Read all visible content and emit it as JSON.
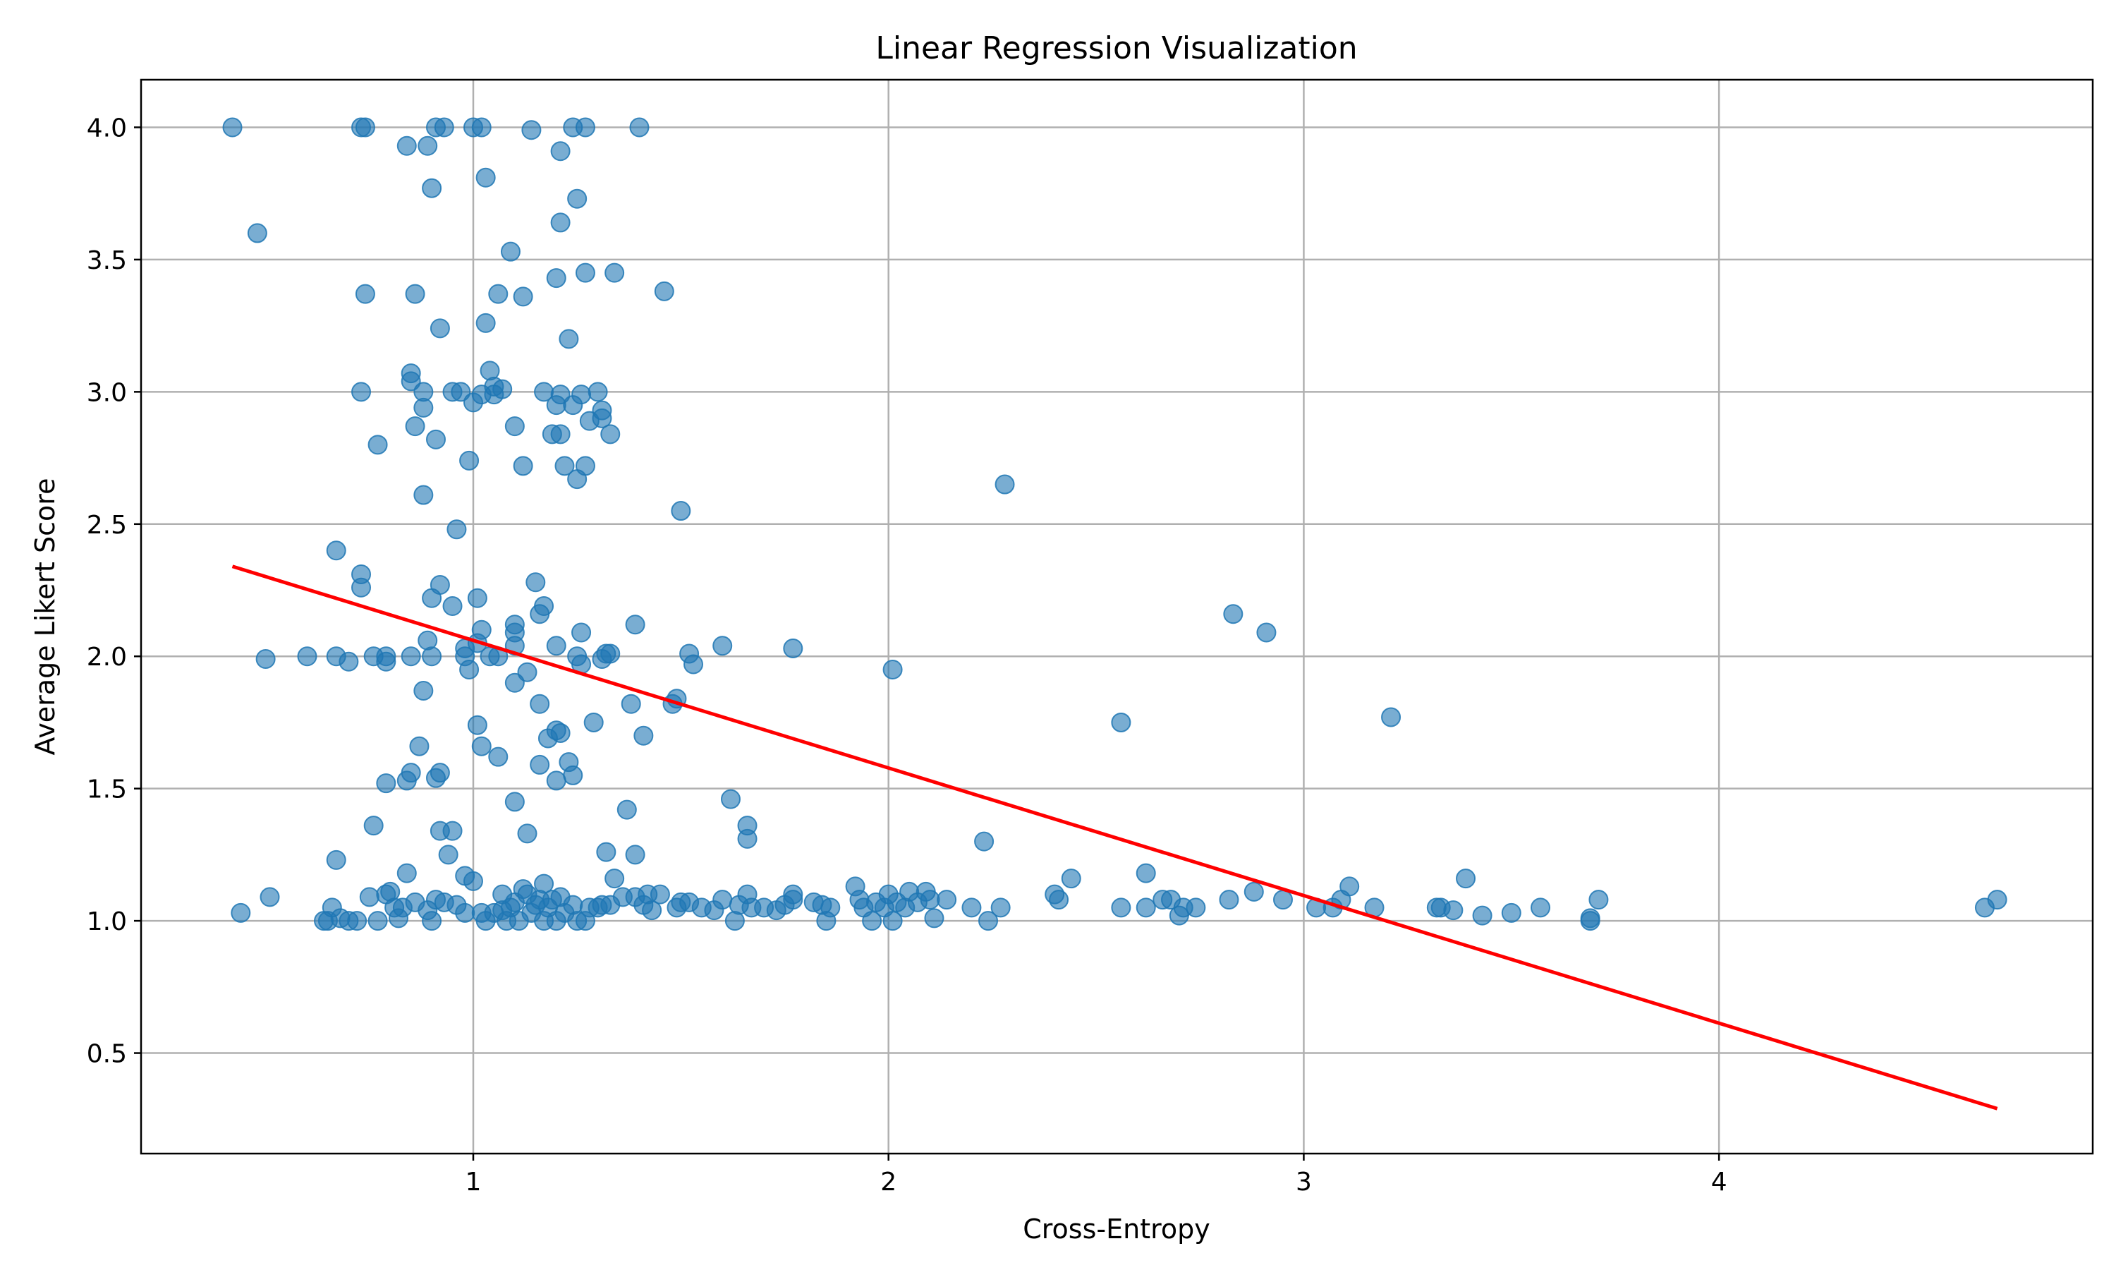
{
  "chart_data": {
    "type": "scatter",
    "title": "Linear Regression Visualization",
    "xlabel": "Cross-Entropy",
    "ylabel": "Average Likert Score",
    "xlim": [
      0.2,
      4.9
    ],
    "ylim": [
      0.12,
      4.18
    ],
    "xticks": [
      1,
      2,
      3,
      4
    ],
    "yticks": [
      0.5,
      1.0,
      1.5,
      2.0,
      2.5,
      3.0,
      3.5,
      4.0
    ],
    "grid": true,
    "colors": {
      "points": "#1f77b4",
      "regression": "#ff0000"
    },
    "regression_line": {
      "x": [
        0.42,
        4.67
      ],
      "y": [
        2.34,
        0.29
      ]
    },
    "points": [
      [
        0.42,
        4.0
      ],
      [
        0.73,
        4.0
      ],
      [
        0.74,
        4.0
      ],
      [
        0.91,
        4.0
      ],
      [
        0.93,
        4.0
      ],
      [
        1.0,
        4.0
      ],
      [
        1.02,
        4.0
      ],
      [
        1.24,
        4.0
      ],
      [
        1.27,
        4.0
      ],
      [
        1.4,
        4.0
      ],
      [
        0.84,
        3.93
      ],
      [
        0.89,
        3.93
      ],
      [
        1.14,
        3.99
      ],
      [
        1.21,
        3.91
      ],
      [
        1.03,
        3.81
      ],
      [
        0.9,
        3.77
      ],
      [
        1.25,
        3.73
      ],
      [
        1.21,
        3.64
      ],
      [
        0.48,
        3.6
      ],
      [
        1.09,
        3.53
      ],
      [
        1.27,
        3.45
      ],
      [
        1.34,
        3.45
      ],
      [
        1.2,
        3.43
      ],
      [
        0.74,
        3.37
      ],
      [
        0.86,
        3.37
      ],
      [
        1.06,
        3.37
      ],
      [
        1.12,
        3.36
      ],
      [
        1.46,
        3.38
      ],
      [
        0.92,
        3.24
      ],
      [
        1.03,
        3.26
      ],
      [
        1.23,
        3.2
      ],
      [
        0.85,
        3.07
      ],
      [
        1.04,
        3.08
      ],
      [
        0.85,
        3.04
      ],
      [
        1.05,
        3.02
      ],
      [
        1.07,
        3.01
      ],
      [
        0.73,
        3.0
      ],
      [
        0.88,
        3.0
      ],
      [
        0.95,
        3.0
      ],
      [
        0.97,
        3.0
      ],
      [
        1.02,
        2.99
      ],
      [
        1.05,
        2.99
      ],
      [
        1.17,
        3.0
      ],
      [
        1.21,
        2.99
      ],
      [
        1.26,
        2.99
      ],
      [
        1.3,
        3.0
      ],
      [
        1.0,
        2.96
      ],
      [
        1.2,
        2.95
      ],
      [
        1.24,
        2.95
      ],
      [
        1.31,
        2.93
      ],
      [
        0.88,
        2.94
      ],
      [
        1.31,
        2.9
      ],
      [
        1.28,
        2.89
      ],
      [
        0.86,
        2.87
      ],
      [
        1.1,
        2.87
      ],
      [
        1.19,
        2.84
      ],
      [
        1.21,
        2.84
      ],
      [
        0.91,
        2.82
      ],
      [
        1.33,
        2.84
      ],
      [
        0.77,
        2.8
      ],
      [
        0.99,
        2.74
      ],
      [
        1.12,
        2.72
      ],
      [
        1.22,
        2.72
      ],
      [
        1.27,
        2.72
      ],
      [
        1.25,
        2.67
      ],
      [
        0.88,
        2.61
      ],
      [
        1.5,
        2.55
      ],
      [
        2.28,
        2.65
      ],
      [
        0.96,
        2.48
      ],
      [
        0.67,
        2.4
      ],
      [
        0.73,
        2.31
      ],
      [
        0.73,
        2.26
      ],
      [
        0.92,
        2.27
      ],
      [
        1.15,
        2.28
      ],
      [
        0.9,
        2.22
      ],
      [
        1.01,
        2.22
      ],
      [
        0.95,
        2.19
      ],
      [
        1.17,
        2.19
      ],
      [
        1.16,
        2.16
      ],
      [
        1.39,
        2.12
      ],
      [
        1.1,
        2.12
      ],
      [
        1.02,
        2.1
      ],
      [
        1.1,
        2.09
      ],
      [
        1.26,
        2.09
      ],
      [
        0.89,
        2.06
      ],
      [
        0.98,
        2.03
      ],
      [
        1.1,
        2.04
      ],
      [
        1.01,
        2.05
      ],
      [
        1.2,
        2.04
      ],
      [
        1.6,
        2.04
      ],
      [
        1.77,
        2.03
      ],
      [
        0.5,
        1.99
      ],
      [
        0.6,
        2.0
      ],
      [
        0.67,
        2.0
      ],
      [
        0.7,
        1.98
      ],
      [
        0.76,
        2.0
      ],
      [
        0.79,
        2.0
      ],
      [
        0.79,
        1.98
      ],
      [
        0.85,
        2.0
      ],
      [
        0.9,
        2.0
      ],
      [
        0.98,
        2.0
      ],
      [
        1.04,
        2.0
      ],
      [
        1.06,
        2.0
      ],
      [
        1.25,
        2.0
      ],
      [
        1.26,
        1.97
      ],
      [
        1.31,
        1.99
      ],
      [
        1.32,
        2.01
      ],
      [
        1.33,
        2.01
      ],
      [
        1.52,
        2.01
      ],
      [
        1.53,
        1.97
      ],
      [
        0.99,
        1.95
      ],
      [
        1.13,
        1.94
      ],
      [
        2.01,
        1.95
      ],
      [
        1.1,
        1.9
      ],
      [
        0.88,
        1.87
      ],
      [
        1.49,
        1.84
      ],
      [
        1.48,
        1.82
      ],
      [
        1.38,
        1.82
      ],
      [
        1.16,
        1.82
      ],
      [
        1.29,
        1.75
      ],
      [
        1.01,
        1.74
      ],
      [
        1.2,
        1.72
      ],
      [
        1.21,
        1.71
      ],
      [
        1.18,
        1.69
      ],
      [
        1.41,
        1.7
      ],
      [
        1.02,
        1.66
      ],
      [
        0.87,
        1.66
      ],
      [
        1.06,
        1.62
      ],
      [
        1.23,
        1.6
      ],
      [
        1.16,
        1.59
      ],
      [
        0.85,
        1.56
      ],
      [
        0.92,
        1.56
      ],
      [
        0.91,
        1.54
      ],
      [
        0.84,
        1.53
      ],
      [
        1.24,
        1.55
      ],
      [
        1.2,
        1.53
      ],
      [
        0.79,
        1.52
      ],
      [
        1.62,
        1.46
      ],
      [
        1.1,
        1.45
      ],
      [
        1.37,
        1.42
      ],
      [
        0.76,
        1.36
      ],
      [
        0.92,
        1.34
      ],
      [
        0.95,
        1.34
      ],
      [
        1.13,
        1.33
      ],
      [
        1.66,
        1.36
      ],
      [
        1.66,
        1.31
      ],
      [
        1.32,
        1.26
      ],
      [
        0.94,
        1.25
      ],
      [
        1.39,
        1.25
      ],
      [
        0.67,
        1.23
      ],
      [
        2.23,
        1.3
      ],
      [
        0.84,
        1.18
      ],
      [
        0.98,
        1.17
      ],
      [
        1.0,
        1.15
      ],
      [
        1.34,
        1.16
      ],
      [
        2.56,
        1.75
      ],
      [
        2.83,
        2.16
      ],
      [
        2.91,
        2.09
      ],
      [
        3.21,
        1.77
      ],
      [
        2.62,
        1.18
      ],
      [
        2.44,
        1.16
      ],
      [
        3.39,
        1.16
      ],
      [
        0.44,
        1.03
      ],
      [
        0.51,
        1.09
      ],
      [
        0.64,
        1.0
      ],
      [
        0.65,
        1.0
      ],
      [
        0.66,
        1.05
      ],
      [
        0.68,
        1.01
      ],
      [
        0.7,
        1.0
      ],
      [
        0.72,
        1.0
      ],
      [
        0.75,
        1.09
      ],
      [
        0.77,
        1.0
      ],
      [
        0.79,
        1.1
      ],
      [
        0.8,
        1.11
      ],
      [
        0.81,
        1.05
      ],
      [
        0.82,
        1.01
      ],
      [
        0.83,
        1.05
      ],
      [
        0.86,
        1.07
      ],
      [
        0.89,
        1.04
      ],
      [
        0.9,
        1.0
      ],
      [
        0.91,
        1.08
      ],
      [
        0.93,
        1.07
      ],
      [
        0.96,
        1.06
      ],
      [
        0.98,
        1.03
      ],
      [
        1.02,
        1.03
      ],
      [
        1.03,
        1.0
      ],
      [
        1.05,
        1.03
      ],
      [
        1.07,
        1.04
      ],
      [
        1.07,
        1.1
      ],
      [
        1.08,
        1.0
      ],
      [
        1.09,
        1.05
      ],
      [
        1.1,
        1.07
      ],
      [
        1.11,
        1.0
      ],
      [
        1.12,
        1.12
      ],
      [
        1.13,
        1.1
      ],
      [
        1.14,
        1.03
      ],
      [
        1.15,
        1.06
      ],
      [
        1.16,
        1.08
      ],
      [
        1.17,
        1.14
      ],
      [
        1.17,
        1.0
      ],
      [
        1.18,
        1.05
      ],
      [
        1.19,
        1.08
      ],
      [
        1.2,
        1.0
      ],
      [
        1.21,
        1.09
      ],
      [
        1.22,
        1.03
      ],
      [
        1.24,
        1.06
      ],
      [
        1.25,
        1.0
      ],
      [
        1.27,
        1.0
      ],
      [
        1.28,
        1.05
      ],
      [
        1.3,
        1.05
      ],
      [
        1.31,
        1.06
      ],
      [
        1.33,
        1.06
      ],
      [
        1.36,
        1.09
      ],
      [
        1.39,
        1.09
      ],
      [
        1.41,
        1.06
      ],
      [
        1.42,
        1.1
      ],
      [
        1.43,
        1.04
      ],
      [
        1.45,
        1.1
      ],
      [
        1.49,
        1.05
      ],
      [
        1.5,
        1.07
      ],
      [
        1.52,
        1.07
      ],
      [
        1.55,
        1.05
      ],
      [
        1.58,
        1.04
      ],
      [
        1.6,
        1.08
      ],
      [
        1.63,
        1.0
      ],
      [
        1.64,
        1.06
      ],
      [
        1.66,
        1.1
      ],
      [
        1.67,
        1.05
      ],
      [
        1.7,
        1.05
      ],
      [
        1.73,
        1.04
      ],
      [
        1.75,
        1.06
      ],
      [
        1.77,
        1.08
      ],
      [
        1.77,
        1.1
      ],
      [
        1.82,
        1.07
      ],
      [
        1.84,
        1.06
      ],
      [
        1.85,
        1.0
      ],
      [
        1.86,
        1.05
      ],
      [
        1.92,
        1.13
      ],
      [
        1.93,
        1.08
      ],
      [
        1.94,
        1.05
      ],
      [
        1.96,
        1.0
      ],
      [
        1.97,
        1.07
      ],
      [
        1.99,
        1.05
      ],
      [
        2.0,
        1.1
      ],
      [
        2.01,
        1.0
      ],
      [
        2.02,
        1.07
      ],
      [
        2.04,
        1.05
      ],
      [
        2.05,
        1.11
      ],
      [
        2.07,
        1.07
      ],
      [
        2.09,
        1.11
      ],
      [
        2.1,
        1.08
      ],
      [
        2.11,
        1.01
      ],
      [
        2.14,
        1.08
      ],
      [
        2.2,
        1.05
      ],
      [
        2.24,
        1.0
      ],
      [
        2.27,
        1.05
      ],
      [
        2.4,
        1.1
      ],
      [
        2.41,
        1.08
      ],
      [
        2.56,
        1.05
      ],
      [
        2.62,
        1.05
      ],
      [
        2.66,
        1.08
      ],
      [
        2.68,
        1.08
      ],
      [
        2.7,
        1.02
      ],
      [
        2.71,
        1.05
      ],
      [
        2.74,
        1.05
      ],
      [
        2.82,
        1.08
      ],
      [
        2.88,
        1.11
      ],
      [
        2.95,
        1.08
      ],
      [
        3.03,
        1.05
      ],
      [
        3.07,
        1.05
      ],
      [
        3.09,
        1.08
      ],
      [
        3.11,
        1.13
      ],
      [
        3.17,
        1.05
      ],
      [
        3.32,
        1.05
      ],
      [
        3.33,
        1.05
      ],
      [
        3.36,
        1.04
      ],
      [
        3.43,
        1.02
      ],
      [
        3.5,
        1.03
      ],
      [
        3.57,
        1.05
      ],
      [
        3.69,
        1.0
      ],
      [
        3.69,
        1.01
      ],
      [
        3.71,
        1.08
      ],
      [
        4.64,
        1.05
      ],
      [
        4.67,
        1.08
      ]
    ]
  }
}
